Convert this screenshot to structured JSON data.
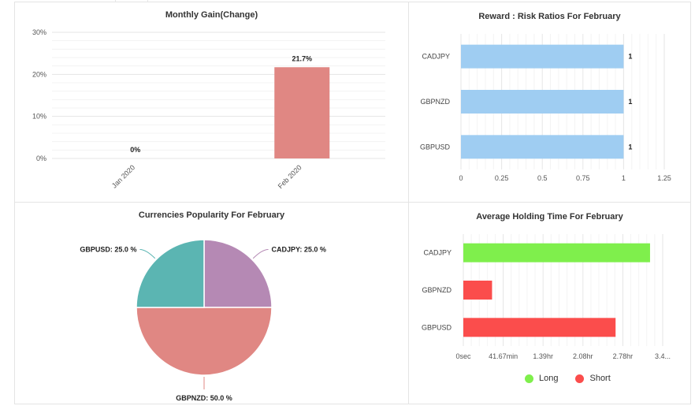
{
  "charts": {
    "monthly_gain": {
      "title": "Monthly Gain(Change)"
    },
    "reward_risk": {
      "title": "Reward : Risk Ratios For February"
    },
    "popularity": {
      "title": "Currencies Popularity For February"
    },
    "holding_time": {
      "title": "Average Holding Time For February",
      "legend": [
        "Long",
        "Short"
      ]
    }
  },
  "chart_data": [
    {
      "type": "bar",
      "title": "Monthly Gain(Change)",
      "categories": [
        "Jan 2020",
        "Feb 2020"
      ],
      "values": [
        0,
        21.7
      ],
      "value_labels": [
        "0%",
        "21.7%"
      ],
      "yticks": [
        "0%",
        "10%",
        "20%",
        "30%"
      ],
      "ylim": [
        0,
        30
      ],
      "bar_color": "#e08783",
      "grid": true
    },
    {
      "type": "bar",
      "orientation": "horizontal",
      "title": "Reward : Risk Ratios For February",
      "categories": [
        "CADJPY",
        "GBPNZD",
        "GBPUSD"
      ],
      "values": [
        1,
        1,
        1
      ],
      "value_labels": [
        "1",
        "1",
        "1"
      ],
      "xticks": [
        "0",
        "0.25",
        "0.5",
        "0.75",
        "1",
        "1.25"
      ],
      "xlim": [
        0,
        1.25
      ],
      "bar_color": "#9fcdf2",
      "grid": true
    },
    {
      "type": "pie",
      "title": "Currencies Popularity For February",
      "slices": [
        {
          "label": "CADJPY: 25.0 %",
          "value": 25.0,
          "color": "#b589b4"
        },
        {
          "label": "GBPNZD: 50.0 %",
          "value": 50.0,
          "color": "#e08783"
        },
        {
          "label": "GBPUSD: 25.0 %",
          "value": 25.0,
          "color": "#5bb5b2"
        }
      ]
    },
    {
      "type": "bar",
      "orientation": "horizontal",
      "title": "Average Holding Time For February",
      "categories": [
        "CADJPY",
        "GBPNZD",
        "GBPUSD"
      ],
      "series": [
        {
          "name": "Long",
          "color": "#7fef4c",
          "values_hours": [
            3.25,
            0,
            0
          ]
        },
        {
          "name": "Short",
          "color": "#fb4d4c",
          "values_hours": [
            0,
            0.5,
            2.65
          ]
        }
      ],
      "xticks": [
        "0sec",
        "41.67min",
        "1.39hr",
        "2.08hr",
        "2.78hr",
        "3.4..."
      ],
      "xlim_hours": [
        0,
        3.47
      ],
      "grid": true,
      "legend_placement": "bottom"
    }
  ]
}
